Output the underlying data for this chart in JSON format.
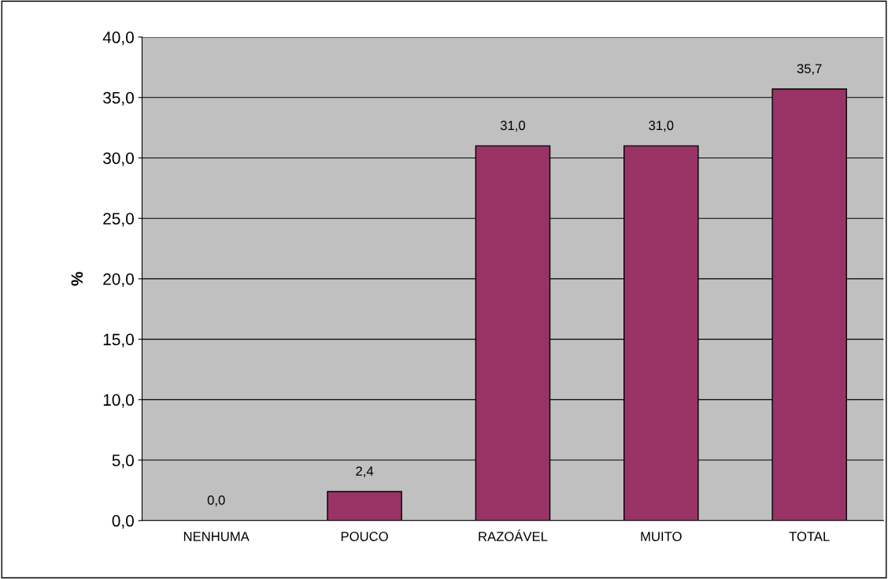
{
  "chart_data": {
    "type": "bar",
    "ylabel": "%",
    "categories": [
      "NENHUMA",
      "POUCO",
      "RAZOÁVEL",
      "MUITO",
      "TOTAL"
    ],
    "values": [
      0.0,
      2.4,
      31.0,
      31.0,
      35.7
    ],
    "value_labels": [
      "0,0",
      "2,4",
      "31,0",
      "31,0",
      "35,7"
    ],
    "color": "#993366",
    "ylim": [
      0,
      40
    ],
    "yticks": [
      {
        "value": 0,
        "label": "0,0"
      },
      {
        "value": 5,
        "label": "5,0"
      },
      {
        "value": 10,
        "label": "10,0"
      },
      {
        "value": 15,
        "label": "15,0"
      },
      {
        "value": 20,
        "label": "20,0"
      },
      {
        "value": 25,
        "label": "25,0"
      },
      {
        "value": 30,
        "label": "30,0"
      },
      {
        "value": 35,
        "label": "35,0"
      },
      {
        "value": 40,
        "label": "40,0"
      }
    ],
    "grid": "y",
    "legend": false
  }
}
